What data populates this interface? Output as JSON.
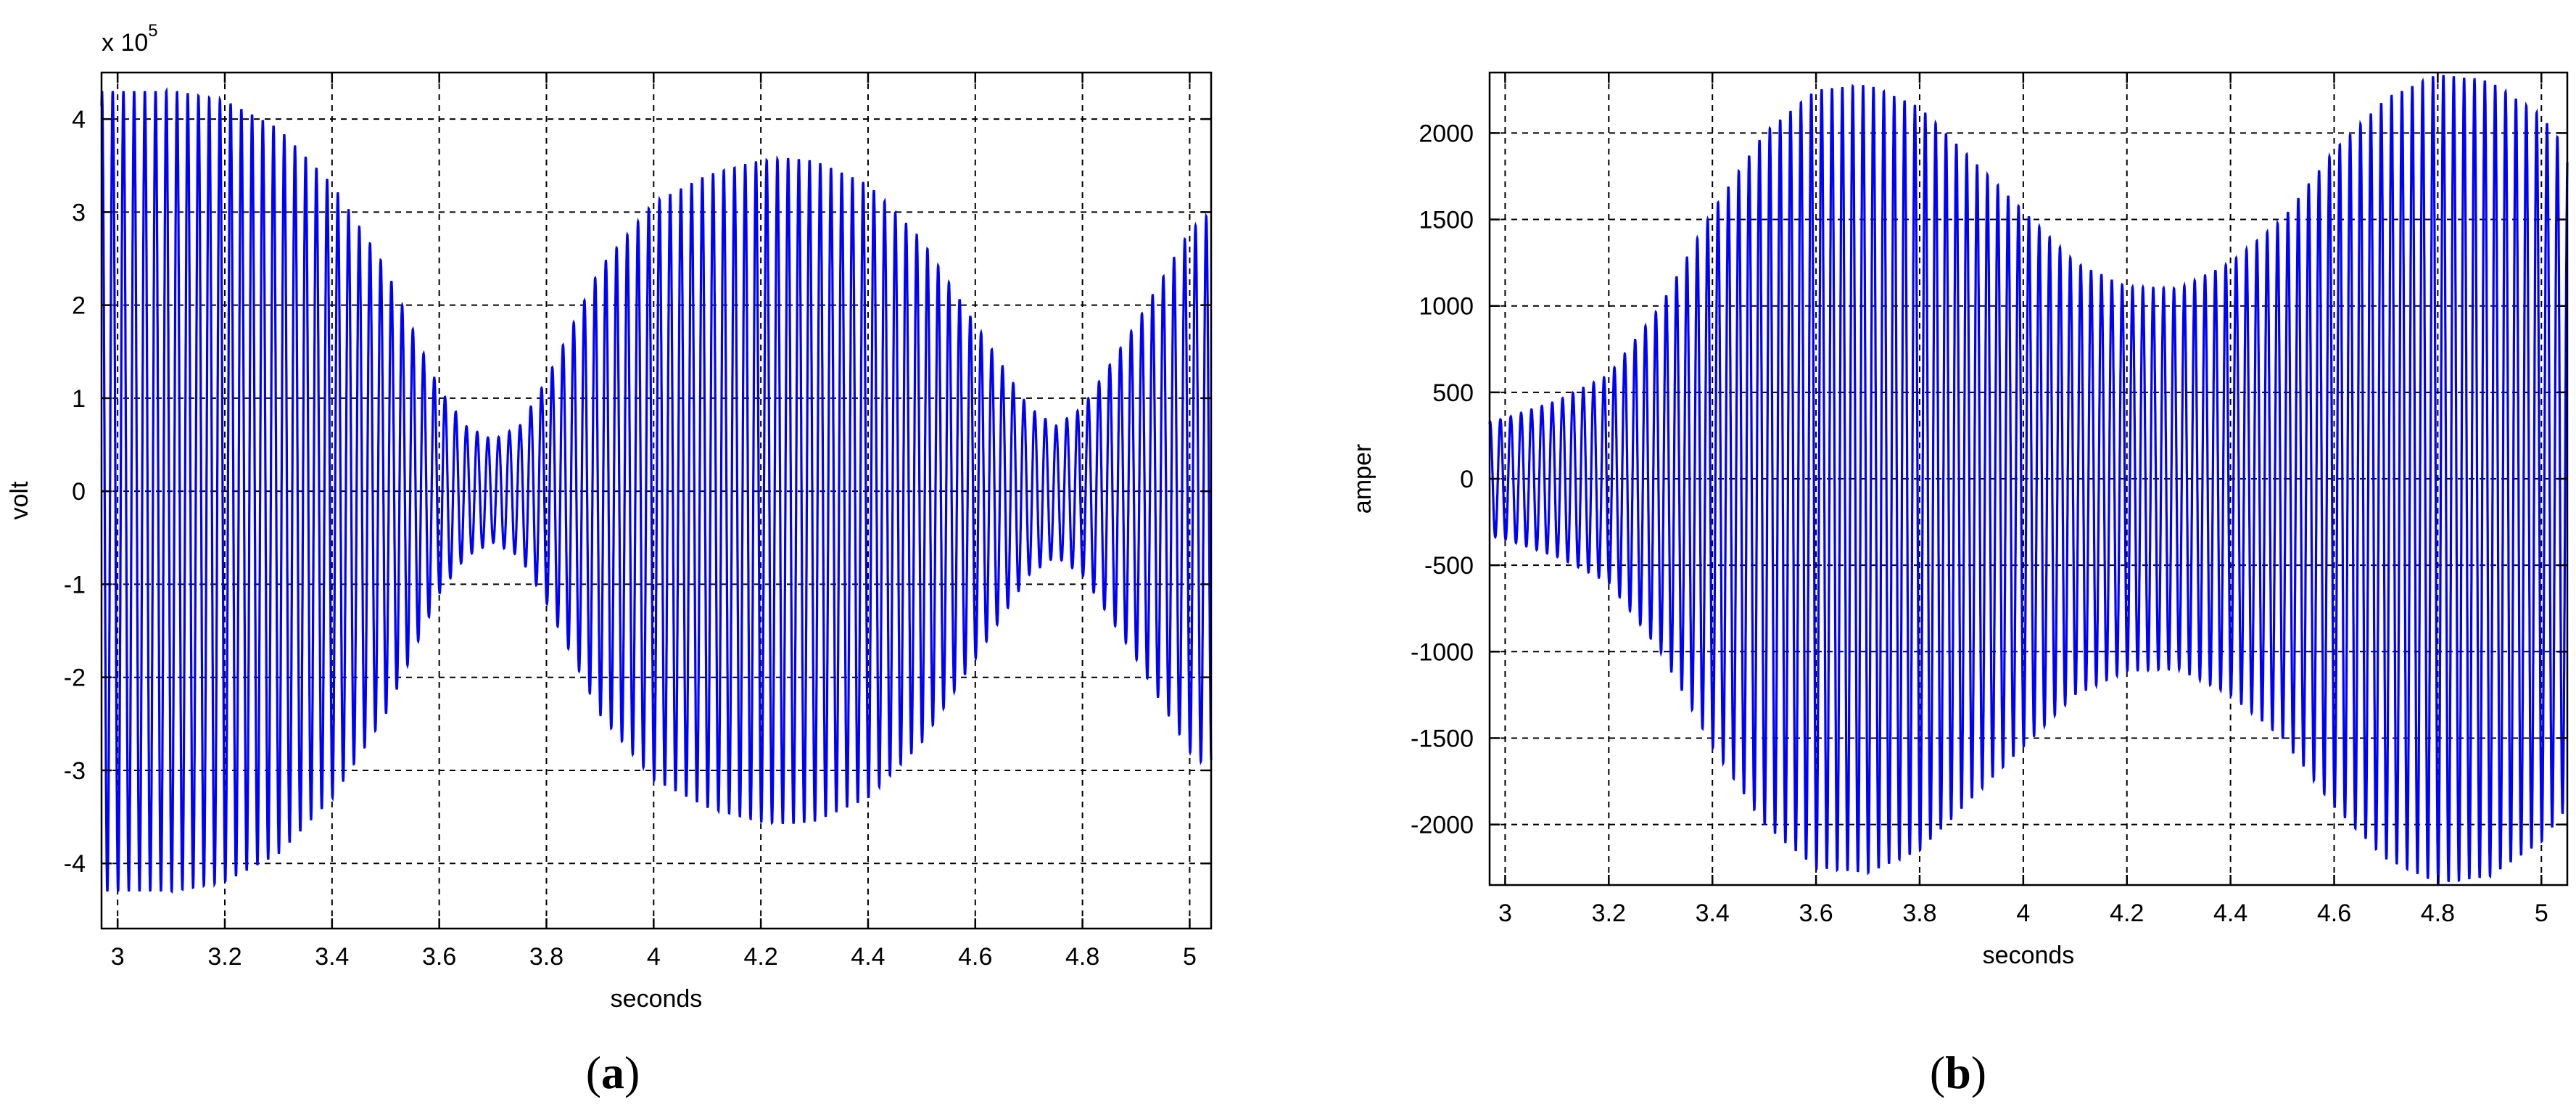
{
  "chart_data": [
    {
      "type": "line",
      "panel_label": "a",
      "xlabel": "seconds",
      "ylabel": "volt",
      "exponent_prefix": "x 10",
      "exponent_power": "5",
      "xlim": [
        2.97,
        5.04
      ],
      "ylim": [
        -4.7,
        4.5
      ],
      "xticks": [
        3,
        3.2,
        3.4,
        3.6,
        3.8,
        4,
        4.2,
        4.4,
        4.6,
        4.8,
        5
      ],
      "xtick_labels": [
        "3",
        "3.2",
        "3.4",
        "3.6",
        "3.8",
        "4",
        "4.2",
        "4.4",
        "4.6",
        "4.8",
        "5"
      ],
      "yticks": [
        -4,
        -3,
        -2,
        -1,
        0,
        1,
        2,
        3,
        4
      ],
      "ytick_labels": [
        "-4",
        "-3",
        "-2",
        "-1",
        "0",
        "1",
        "2",
        "3",
        "4"
      ],
      "grid": true,
      "series": [
        {
          "color": "#0000ff",
          "oscillation_cycles_per_second": 50,
          "envelope_t": [
            2.97,
            3.0,
            3.1,
            3.2,
            3.3,
            3.4,
            3.5,
            3.6,
            3.65,
            3.7,
            3.75,
            3.8,
            3.9,
            4.0,
            4.1,
            4.2,
            4.25,
            4.3,
            4.4,
            4.5,
            4.6,
            4.7,
            4.75,
            4.8,
            4.9,
            5.0,
            5.04
          ],
          "envelope_amplitude": [
            4.3,
            4.3,
            4.3,
            4.2,
            3.9,
            3.3,
            2.4,
            1.1,
            0.7,
            0.55,
            0.7,
            1.2,
            2.4,
            3.1,
            3.4,
            3.55,
            3.58,
            3.55,
            3.3,
            2.7,
            1.8,
            0.9,
            0.7,
            0.9,
            1.8,
            2.8,
            3.0
          ]
        }
      ]
    },
    {
      "type": "line",
      "panel_label": "b",
      "xlabel": "seconds",
      "ylabel": "amper",
      "xlim": [
        2.97,
        5.05
      ],
      "ylim": [
        -2350,
        2350
      ],
      "xticks": [
        3,
        3.2,
        3.4,
        3.6,
        3.8,
        4,
        4.2,
        4.4,
        4.6,
        4.8,
        5
      ],
      "xtick_labels": [
        "3",
        "3.2",
        "3.4",
        "3.6",
        "3.8",
        "4",
        "4.2",
        "4.4",
        "4.6",
        "4.8",
        "5"
      ],
      "yticks": [
        -2000,
        -1500,
        -1000,
        -500,
        0,
        500,
        1000,
        1500,
        2000
      ],
      "ytick_labels": [
        "-2000",
        "-1500",
        "-1000",
        "-500",
        "0",
        "500",
        "1000",
        "1500",
        "2000"
      ],
      "grid": true,
      "series": [
        {
          "color": "#0000ff",
          "oscillation_cycles_per_second": 50,
          "envelope_t": [
            2.97,
            3.0,
            3.1,
            3.2,
            3.3,
            3.4,
            3.5,
            3.6,
            3.7,
            3.8,
            3.9,
            4.0,
            4.1,
            4.2,
            4.3,
            4.4,
            4.5,
            4.6,
            4.7,
            4.8,
            4.9,
            5.0,
            5.05
          ],
          "envelope_amplitude": [
            330,
            350,
            450,
            600,
            1000,
            1550,
            2000,
            2250,
            2280,
            2150,
            1850,
            1550,
            1250,
            1110,
            1100,
            1250,
            1500,
            1900,
            2200,
            2340,
            2300,
            2100,
            1900
          ]
        }
      ]
    }
  ]
}
